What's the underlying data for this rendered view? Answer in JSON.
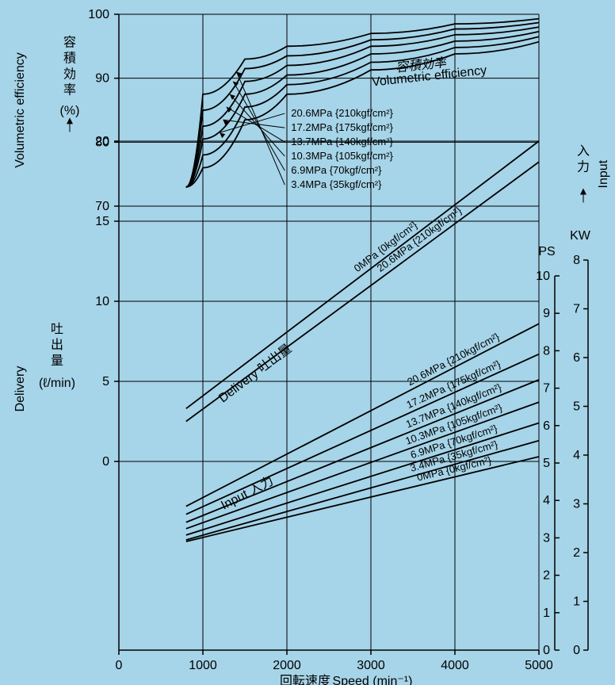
{
  "background_color": "#a6d4e8",
  "plot_background_color": "#a5d4e7",
  "line_color": "#000000",
  "text_color": "#000000",
  "tick_fontsize": 16,
  "label_fontsize": 16,
  "series_fontsize": 13,
  "x_axis": {
    "label_en": "Speed",
    "label_jp": "回転速度",
    "unit": "(min⁻¹)",
    "min": 0,
    "max": 5000,
    "ticks": [
      0,
      1000,
      2000,
      3000,
      4000,
      5000
    ]
  },
  "left_axes": {
    "volumetric_efficiency": {
      "label_en": "Volumetric efficiency",
      "label_jp": "容積効率",
      "unit": "(%)",
      "ticks": [
        70,
        80,
        90,
        100
      ]
    },
    "delivery": {
      "label_en": "Delivery",
      "label_jp": "吐出量",
      "unit": "(ℓ/min)",
      "ticks": [
        0,
        5,
        10,
        15,
        20
      ]
    }
  },
  "right_axes": {
    "input": {
      "label_en": "Input",
      "label_jp": "入力",
      "ps": {
        "label": "PS",
        "ticks": [
          0,
          1,
          2,
          3,
          4,
          5,
          6,
          7,
          8,
          9,
          10
        ]
      },
      "kw": {
        "label": "KW",
        "ticks": [
          0,
          1,
          2,
          3,
          4,
          5,
          6,
          7,
          8
        ]
      }
    }
  },
  "region_labels": {
    "vol_eff": {
      "jp": "容積効率",
      "en": "Volumetric efficiency"
    },
    "delivery": {
      "jp": "吐出量",
      "en": "Delivery"
    },
    "input": {
      "jp": "入力",
      "en": "Input"
    }
  },
  "vol_eff_curves": [
    {
      "label": "3.4MPa {35kgf/cm²}",
      "points": [
        [
          800,
          73.0
        ],
        [
          1000,
          87.5
        ],
        [
          1500,
          93.0
        ],
        [
          2000,
          95.0
        ],
        [
          3000,
          97.0
        ],
        [
          4000,
          98.5
        ],
        [
          5000,
          99.3
        ]
      ]
    },
    {
      "label": "6.9MPa {70kgf/cm²}",
      "points": [
        [
          800,
          73.0
        ],
        [
          1000,
          85.0
        ],
        [
          1500,
          91.5
        ],
        [
          2000,
          93.5
        ],
        [
          3000,
          96.0
        ],
        [
          4000,
          97.7
        ],
        [
          5000,
          98.7
        ]
      ]
    },
    {
      "label": "10.3MPa {105kgf/cm²}",
      "points": [
        [
          800,
          73.0
        ],
        [
          1000,
          82.5
        ],
        [
          1500,
          89.5
        ],
        [
          2000,
          92.0
        ],
        [
          3000,
          95.0
        ],
        [
          4000,
          96.8
        ],
        [
          5000,
          98.0
        ]
      ]
    },
    {
      "label": "13.7MPa {140kgf/cm²}",
      "points": [
        [
          800,
          73.0
        ],
        [
          1000,
          80.5
        ],
        [
          1500,
          87.5
        ],
        [
          2000,
          90.5
        ],
        [
          3000,
          93.8
        ],
        [
          4000,
          95.8
        ],
        [
          5000,
          97.3
        ]
      ]
    },
    {
      "label": "17.2MPa {175kgf/cm²}",
      "points": [
        [
          800,
          73.0
        ],
        [
          1000,
          78.0
        ],
        [
          1500,
          85.5
        ],
        [
          2000,
          89.0
        ],
        [
          3000,
          92.5
        ],
        [
          4000,
          94.8
        ],
        [
          5000,
          96.5
        ]
      ]
    },
    {
      "label": "20.6MPa {210kgf/cm²}",
      "points": [
        [
          800,
          73.0
        ],
        [
          1000,
          76.0
        ],
        [
          1500,
          83.5
        ],
        [
          2000,
          87.5
        ],
        [
          3000,
          91.3
        ],
        [
          4000,
          93.8
        ],
        [
          5000,
          95.7
        ]
      ]
    }
  ],
  "vol_eff_legend": [
    "20.6MPa {210kgf/cm²}",
    "17.2MPa {175kgf/cm²}",
    "13.7MPa {140kgf/cm²}",
    "10.3MPa {105kgf/cm²}",
    "6.9MPa {70kgf/cm²}",
    "3.4MPa {35kgf/cm²}"
  ],
  "delivery_lines": [
    {
      "label": "0MPa {0kgf/cm²}",
      "points": [
        [
          800,
          3.3
        ],
        [
          5000,
          20.0
        ]
      ]
    },
    {
      "label": "20.6MPa {210kgf/cm²}",
      "points": [
        [
          800,
          2.5
        ],
        [
          5000,
          18.7
        ]
      ]
    }
  ],
  "input_lines": [
    {
      "label": "20.6MPa {210kgf/cm²}",
      "points": [
        [
          800,
          -2.8
        ],
        [
          5000,
          8.6
        ]
      ]
    },
    {
      "label": "17.2MPa {175kgf/cm²}",
      "points": [
        [
          800,
          -3.3
        ],
        [
          5000,
          6.7
        ]
      ]
    },
    {
      "label": "13.7MPa {140kgf/cm²}",
      "points": [
        [
          800,
          -3.8
        ],
        [
          5000,
          5.1
        ]
      ]
    },
    {
      "label": "10.3MPa {105kgf/cm²}",
      "points": [
        [
          800,
          -4.2
        ],
        [
          5000,
          3.7
        ]
      ]
    },
    {
      "label": "6.9MPa {70kgf/cm²}",
      "points": [
        [
          800,
          -4.6
        ],
        [
          5000,
          2.4
        ]
      ]
    },
    {
      "label": "3.4MPa {35kgf/cm²}",
      "points": [
        [
          800,
          -4.9
        ],
        [
          5000,
          1.3
        ]
      ]
    },
    {
      "label": "0MPa {0kgf/cm²}",
      "points": [
        [
          800,
          -5.0
        ],
        [
          5000,
          0.3
        ]
      ]
    }
  ]
}
